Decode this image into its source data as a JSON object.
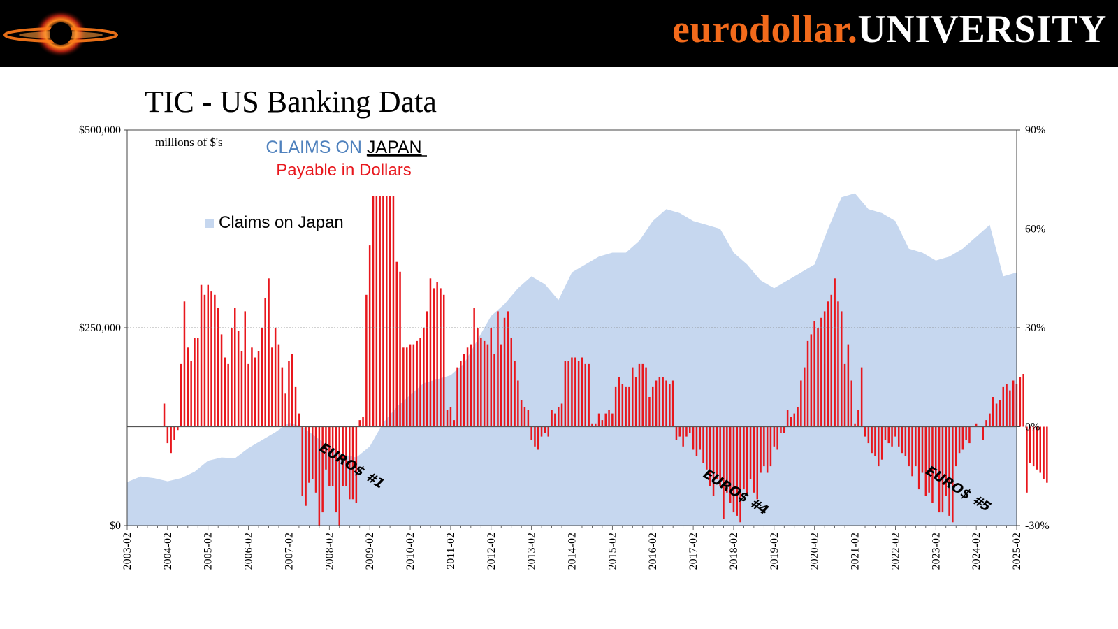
{
  "header": {
    "brand_part1": "eurodollar.",
    "brand_part2": "UNIVERSITY",
    "brand_color": "#f26a1b"
  },
  "slide_title": "TIC - US Banking Data",
  "chart_data": {
    "type": "area+bar",
    "units_note": "millions of $'s",
    "title_line1_prefix": "CLAIMS ON ",
    "title_line1_underlined": "JAPAN",
    "title_line2": "Payable in Dollars",
    "legend": {
      "label": "Claims on Japan",
      "position": "upper-left"
    },
    "left_axis": {
      "min": 0,
      "max": 500000,
      "ticks": [
        0,
        250000,
        500000
      ],
      "tick_labels": [
        "$0",
        "$250,000",
        "$500,000"
      ]
    },
    "right_axis": {
      "min": -30,
      "max": 90,
      "ticks": [
        -30,
        0,
        30,
        60,
        90
      ],
      "tick_labels": [
        "-30%",
        "0%",
        "30%",
        "60%",
        "90%"
      ]
    },
    "x_tick_labels": [
      "2003-02",
      "2004-02",
      "2005-02",
      "2006-02",
      "2007-02",
      "2008-02",
      "2009-02",
      "2010-02",
      "2011-02",
      "2012-02",
      "2013-02",
      "2014-02",
      "2015-02",
      "2016-02",
      "2017-02",
      "2018-02",
      "2019-02",
      "2020-02",
      "2021-02",
      "2022-02",
      "2023-02",
      "2024-02",
      "2025-02"
    ],
    "x_start": "2003-02",
    "x_end": "2025-02",
    "area_series": {
      "name": "Claims on Japan",
      "axis": "left",
      "color": "#c6d7ef",
      "points": [
        [
          "2003-02",
          55000
        ],
        [
          "2003-06",
          62000
        ],
        [
          "2003-10",
          60000
        ],
        [
          "2004-02",
          56000
        ],
        [
          "2004-06",
          60000
        ],
        [
          "2004-10",
          68000
        ],
        [
          "2005-02",
          82000
        ],
        [
          "2005-06",
          86000
        ],
        [
          "2005-10",
          85000
        ],
        [
          "2006-02",
          98000
        ],
        [
          "2006-06",
          108000
        ],
        [
          "2006-10",
          118000
        ],
        [
          "2007-02",
          130000
        ],
        [
          "2007-06",
          125000
        ],
        [
          "2007-10",
          112000
        ],
        [
          "2008-02",
          100000
        ],
        [
          "2008-06",
          90000
        ],
        [
          "2008-10",
          86000
        ],
        [
          "2009-02",
          100000
        ],
        [
          "2009-06",
          130000
        ],
        [
          "2009-10",
          150000
        ],
        [
          "2010-02",
          165000
        ],
        [
          "2010-06",
          180000
        ],
        [
          "2010-10",
          185000
        ],
        [
          "2011-02",
          190000
        ],
        [
          "2011-06",
          205000
        ],
        [
          "2011-10",
          235000
        ],
        [
          "2012-02",
          265000
        ],
        [
          "2012-06",
          280000
        ],
        [
          "2012-10",
          300000
        ],
        [
          "2013-02",
          315000
        ],
        [
          "2013-06",
          305000
        ],
        [
          "2013-10",
          285000
        ],
        [
          "2014-02",
          320000
        ],
        [
          "2014-06",
          330000
        ],
        [
          "2014-10",
          340000
        ],
        [
          "2015-02",
          345000
        ],
        [
          "2015-06",
          345000
        ],
        [
          "2015-10",
          360000
        ],
        [
          "2016-02",
          385000
        ],
        [
          "2016-06",
          400000
        ],
        [
          "2016-10",
          395000
        ],
        [
          "2017-02",
          385000
        ],
        [
          "2017-06",
          380000
        ],
        [
          "2017-10",
          375000
        ],
        [
          "2018-02",
          345000
        ],
        [
          "2018-06",
          330000
        ],
        [
          "2018-10",
          310000
        ],
        [
          "2019-02",
          300000
        ],
        [
          "2019-06",
          310000
        ],
        [
          "2019-10",
          320000
        ],
        [
          "2020-02",
          330000
        ],
        [
          "2020-06",
          375000
        ],
        [
          "2020-10",
          415000
        ],
        [
          "2021-02",
          420000
        ],
        [
          "2021-06",
          400000
        ],
        [
          "2021-10",
          395000
        ],
        [
          "2022-02",
          385000
        ],
        [
          "2022-06",
          350000
        ],
        [
          "2022-10",
          345000
        ],
        [
          "2023-02",
          335000
        ],
        [
          "2023-06",
          340000
        ],
        [
          "2023-10",
          350000
        ],
        [
          "2024-02",
          365000
        ],
        [
          "2024-06",
          380000
        ],
        [
          "2024-10",
          315000
        ],
        [
          "2025-02",
          320000
        ]
      ]
    },
    "bar_series": {
      "name": "Payable in Dollars",
      "axis": "right",
      "unit": "%",
      "color": "#e8171d",
      "start": "2004-01",
      "values": [
        7,
        -5,
        -8,
        -4,
        -1,
        19,
        38,
        24,
        20,
        27,
        27,
        43,
        40,
        43,
        41,
        40,
        36,
        28,
        21,
        19,
        30,
        36,
        29,
        23,
        35,
        19,
        24,
        21,
        23,
        30,
        39,
        45,
        24,
        30,
        25,
        18,
        10,
        20,
        22,
        12,
        4,
        -21,
        -24,
        -17,
        -16,
        -20,
        -30,
        -26,
        -13,
        -18,
        -18,
        -26,
        -30,
        -18,
        -18,
        -22,
        -22,
        -23,
        2,
        3,
        40,
        55,
        70,
        70,
        70,
        70,
        70,
        70,
        70,
        50,
        47,
        24,
        24,
        25,
        25,
        26,
        27,
        30,
        35,
        45,
        42,
        44,
        42,
        40,
        5,
        6,
        2,
        18,
        20,
        22,
        24,
        25,
        36,
        30,
        27,
        26,
        25,
        30,
        22,
        35,
        25,
        33,
        35,
        27,
        20,
        14,
        8,
        6,
        5,
        -4,
        -6,
        -7,
        -3,
        -2,
        -3,
        5,
        4,
        6,
        7,
        20,
        20,
        21,
        21,
        20,
        21,
        19,
        19,
        1,
        1,
        4,
        2,
        4,
        5,
        4,
        12,
        15,
        13,
        12,
        12,
        18,
        15,
        19,
        19,
        18,
        9,
        12,
        14,
        15,
        15,
        14,
        13,
        14,
        -4,
        -3,
        -6,
        -3,
        -2,
        -7,
        -9,
        -7,
        -11,
        -13,
        -18,
        -21,
        -16,
        -18,
        -28,
        -20,
        -23,
        -26,
        -27,
        -29,
        -19,
        -21,
        -16,
        -20,
        -22,
        -14,
        -12,
        -14,
        -12,
        -6,
        -7,
        -2,
        -2,
        5,
        3,
        4,
        6,
        14,
        18,
        26,
        28,
        32,
        30,
        33,
        35,
        38,
        40,
        45,
        38,
        35,
        19,
        25,
        14,
        1,
        5,
        18,
        -3,
        -5,
        -8,
        -9,
        -12,
        -10,
        -4,
        -5,
        -6,
        -3,
        -6,
        -8,
        -9,
        -12,
        -15,
        -12,
        -19,
        -14,
        -21,
        -20,
        -23,
        -16,
        -26,
        -26,
        -21,
        -27,
        -29,
        -12,
        -8,
        -7,
        -4,
        -5,
        0,
        1,
        0,
        -4,
        2,
        4,
        9,
        7,
        8,
        12,
        13,
        11,
        14,
        13,
        15,
        16,
        -20,
        -11,
        -12,
        -13,
        -14,
        -16,
        -17
      ]
    },
    "annotations": [
      {
        "text": "EURO$ #1",
        "x": "2008-08",
        "y": -13,
        "rotate_deg": 32
      },
      {
        "text": "EURO$ #4",
        "x": "2018-02",
        "y": -21,
        "rotate_deg": 32
      },
      {
        "text": "EURO$ #5",
        "x": "2023-08",
        "y": -20,
        "rotate_deg": 32
      }
    ],
    "gridlines": {
      "left_axis_250000": true,
      "zero_line_right_axis": true
    }
  }
}
